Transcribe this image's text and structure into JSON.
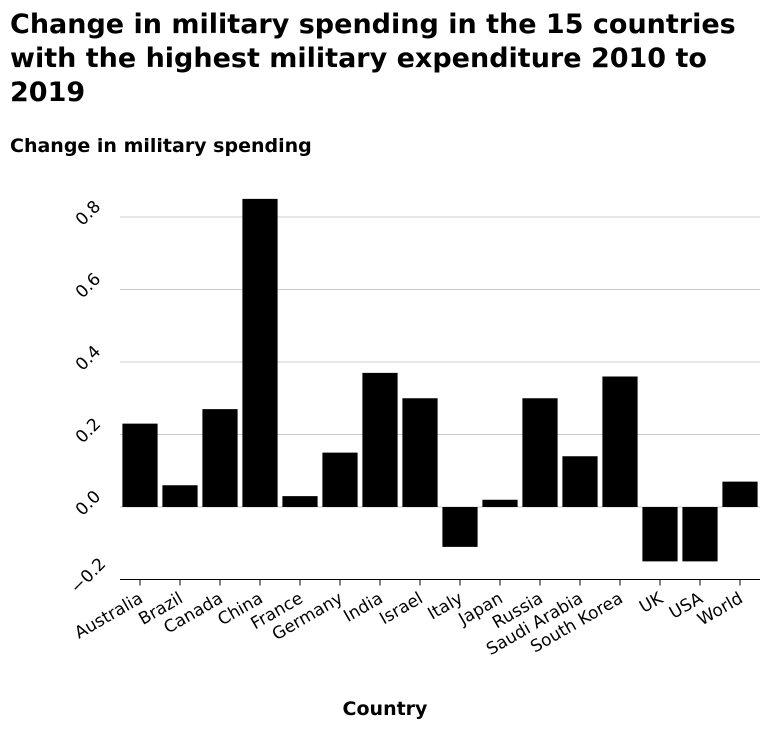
{
  "chart_data": {
    "type": "bar",
    "title": "Change in military spending in the 15 countries with the highest military expenditure 2010 to 2019",
    "ylabel": "Change in military spending",
    "xlabel": "Country",
    "categories": [
      "Australia",
      "Brazil",
      "Canada",
      "China",
      "France",
      "Germany",
      "India",
      "Israel",
      "Italy",
      "Japan",
      "Russia",
      "Saudi Arabia",
      "South Korea",
      "UK",
      "USA",
      "World"
    ],
    "values": [
      0.23,
      0.06,
      0.27,
      0.85,
      0.03,
      0.15,
      0.37,
      0.3,
      -0.11,
      0.02,
      0.3,
      0.14,
      0.36,
      -0.15,
      -0.15,
      0.07
    ],
    "yticks": [
      "−0.2",
      "0.0",
      "0.2",
      "0.4",
      "0.6",
      "0.8"
    ],
    "ylim": [
      -0.2,
      0.9
    ],
    "grid": true,
    "bar_color": "#000000",
    "grid_color": "#cccccc"
  }
}
